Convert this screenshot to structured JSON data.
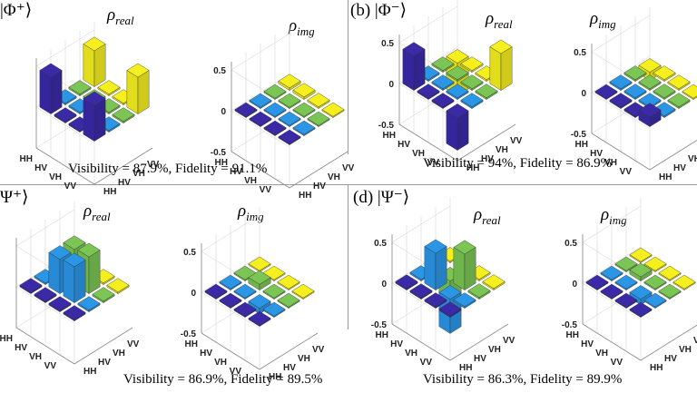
{
  "chart_data": [
    {
      "type": "bar3d",
      "id": "a",
      "panel_label": "|Φ⁺⟩",
      "caption": "Visibility = 87.9%, Fidelity = 91.1%",
      "basis": [
        "HH",
        "HV",
        "VH",
        "VV"
      ],
      "zticks": [
        "0.5",
        "0",
        "-0.5"
      ],
      "zlim": [
        -0.5,
        0.5
      ],
      "real": {
        "title_base": "ρ",
        "title_sub": "real",
        "matrix": [
          [
            0.45,
            0.02,
            0.02,
            0.44
          ],
          [
            0.02,
            0.02,
            0.02,
            0.02
          ],
          [
            0.02,
            0.02,
            0.02,
            0.02
          ],
          [
            0.44,
            0.02,
            0.02,
            0.45
          ]
        ]
      },
      "imag": {
        "title_base": "ρ",
        "title_sub": "img",
        "matrix": [
          [
            0.0,
            0.0,
            0.0,
            0.03
          ],
          [
            0.0,
            0.0,
            0.0,
            0.03
          ],
          [
            0.0,
            0.0,
            0.0,
            0.02
          ],
          [
            0.0,
            0.0,
            0.0,
            0.0
          ]
        ]
      }
    },
    {
      "type": "bar3d",
      "id": "b",
      "panel_label": "(b) |Φ⁻⟩",
      "caption": "Visibility = 94%, Fidelity = 86.9%",
      "basis": [
        "HH",
        "HV",
        "VH",
        "VV"
      ],
      "zticks": [
        "0.5",
        "0",
        "-0.5"
      ],
      "zlim": [
        -0.5,
        0.5
      ],
      "real": {
        "title_base": "ρ",
        "title_sub": "real",
        "matrix": [
          [
            0.42,
            0.02,
            0.02,
            -0.4
          ],
          [
            0.02,
            0.02,
            0.02,
            0.02
          ],
          [
            0.02,
            0.02,
            0.02,
            0.02
          ],
          [
            -0.4,
            0.02,
            0.02,
            0.45
          ]
        ]
      },
      "imag": {
        "title_base": "ρ",
        "title_sub": "img",
        "matrix": [
          [
            0.0,
            0.02,
            0.02,
            -0.1
          ],
          [
            0.02,
            0.02,
            0.02,
            0.02
          ],
          [
            0.02,
            0.02,
            0.02,
            0.02
          ],
          [
            0.12,
            0.02,
            0.02,
            0.0
          ]
        ]
      }
    },
    {
      "type": "bar3d",
      "id": "c",
      "panel_label": "Ψ⁺⟩",
      "caption": "Visibility = 86.9%, Fidelity = 89.5%",
      "basis": [
        "HH",
        "HV",
        "VH",
        "VV"
      ],
      "zticks": [
        "0.5",
        "0",
        "-0.5"
      ],
      "zlim": [
        -0.5,
        0.5
      ],
      "real": {
        "title_base": "ρ",
        "title_sub": "real",
        "matrix": [
          [
            0.02,
            0.02,
            0.02,
            0.02
          ],
          [
            0.02,
            0.42,
            0.43,
            0.02
          ],
          [
            0.02,
            0.44,
            0.45,
            0.02
          ],
          [
            0.02,
            0.02,
            0.02,
            0.02
          ]
        ]
      },
      "imag": {
        "title_base": "ρ",
        "title_sub": "img",
        "matrix": [
          [
            0.0,
            0.0,
            0.0,
            0.0
          ],
          [
            0.0,
            0.0,
            0.07,
            0.0
          ],
          [
            0.0,
            -0.07,
            0.0,
            0.0
          ],
          [
            0.0,
            0.0,
            0.0,
            0.0
          ]
        ]
      }
    },
    {
      "type": "bar3d",
      "id": "d",
      "panel_label": "(d) |Ψ⁻⟩",
      "caption": "Visibility = 86.3%, Fidelity = 89.9%",
      "basis": [
        "HH",
        "HV",
        "VH",
        "VV"
      ],
      "zticks": [
        "0.5",
        "0",
        "-0.5"
      ],
      "zlim": [
        -0.5,
        0.5
      ],
      "real": {
        "title_base": "ρ",
        "title_sub": "real",
        "matrix": [
          [
            0.02,
            0.02,
            0.02,
            0.02
          ],
          [
            0.02,
            0.45,
            -0.4,
            0.02
          ],
          [
            0.02,
            -0.42,
            0.44,
            0.02
          ],
          [
            0.02,
            0.02,
            0.02,
            0.02
          ]
        ]
      },
      "imag": {
        "title_base": "ρ",
        "title_sub": "img",
        "matrix": [
          [
            0.0,
            0.0,
            0.0,
            0.0
          ],
          [
            0.0,
            0.0,
            0.05,
            0.0
          ],
          [
            0.0,
            -0.07,
            0.0,
            0.0
          ],
          [
            0.0,
            0.0,
            0.0,
            0.0
          ]
        ]
      }
    }
  ],
  "colors": {
    "col0": "#3a2aa8",
    "col1": "#2b95e6",
    "col2": "#7ac553",
    "col3": "#f5ef1e",
    "grid": "#dddddd",
    "axis": "#888888"
  }
}
